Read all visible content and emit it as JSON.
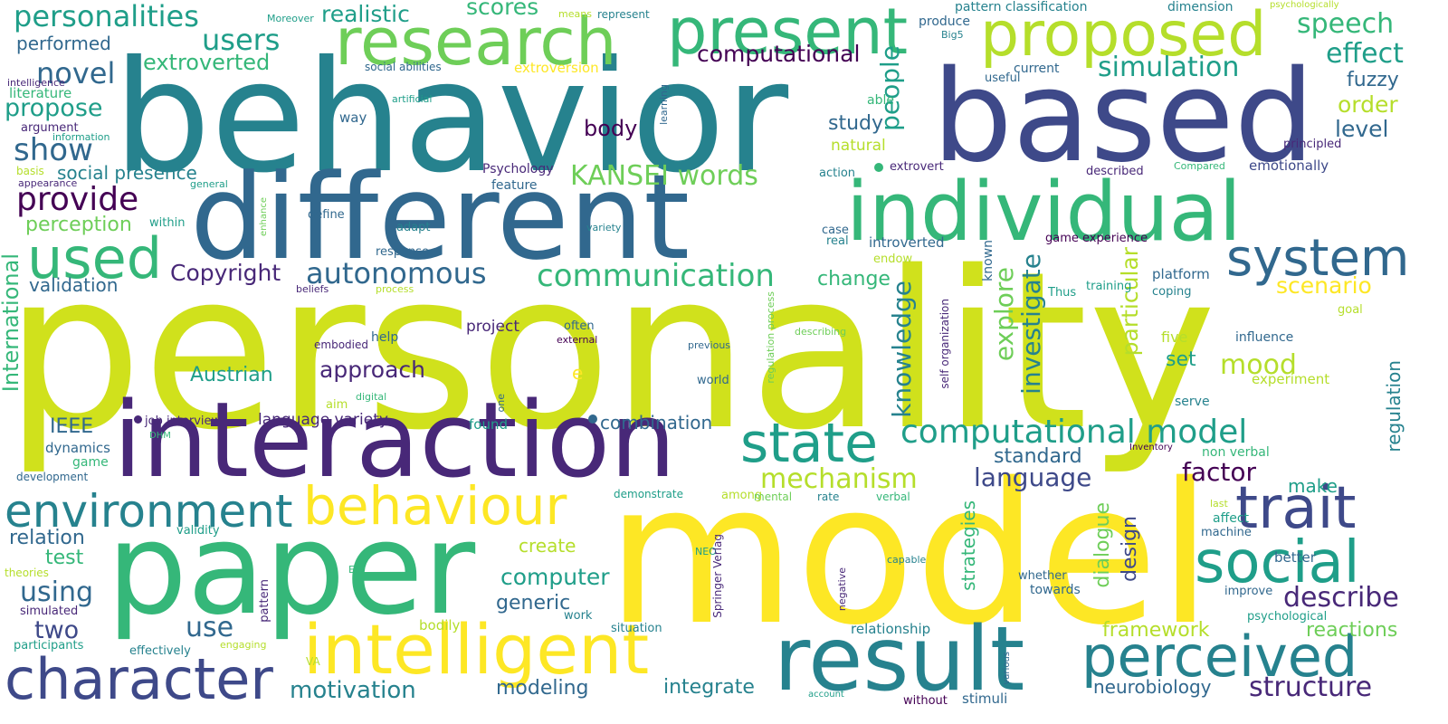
{
  "colors": {
    "background": "#ffffff",
    "palette": {
      "p1": "#440154",
      "p2": "#482878",
      "p3": "#3e4989",
      "p4": "#31688e",
      "p5": "#26828e",
      "p6": "#1f9e89",
      "p7": "#35b779",
      "p8": "#6ece58",
      "p9": "#b5de2b",
      "p10": "#fde725",
      "p11": "#d0e11c"
    }
  },
  "words": {
    "personality": "personality",
    "behavior": "behavior",
    "model": "model",
    "based": "based",
    "different": "different",
    "interaction": "interaction",
    "paper": "paper",
    "individual": "individual",
    "research": "research",
    "present": "present",
    "proposed": "proposed",
    "result": "result",
    "intelligent": "intelligent",
    "character": "character",
    "used": "used",
    "environment": "environment",
    "behaviour": "behaviour",
    "state": "state",
    "social": "social",
    "trait": "trait",
    "system": "system",
    "perceived": "perceived",
    "communication": "communication",
    "computational_model": "computational model",
    "structure": "structure",
    "personalities": "personalities",
    "realistic": "realistic",
    "scores": "scores",
    "users": "users",
    "extroverted": "extroverted",
    "novel": "novel",
    "performed": "performed",
    "literature": "literature",
    "propose": "propose",
    "show": "show",
    "social_presence": "social presence",
    "provide": "provide",
    "perception": "perception",
    "copyright": "Copyright",
    "autonomous": "autonomous",
    "validation": "validation",
    "austrian": "Austrian",
    "international": "International",
    "ieee": "IEEE",
    "dynamics": "dynamics",
    "game": "game",
    "development": "development",
    "relation": "relation",
    "test": "test",
    "using": "using",
    "two": "two",
    "theories": "theories",
    "simulated": "simulated",
    "participants": "participants",
    "effectively": "effectively",
    "engaging": "engaging",
    "va": "VA",
    "motivation": "motivation",
    "modeling": "modeling",
    "integrate": "integrate",
    "use": "use",
    "computer": "computer",
    "generic": "generic",
    "bodily": "bodily",
    "situation": "situation",
    "work": "work",
    "create": "create",
    "kansei_words": "KANSEI words",
    "computational": "computational",
    "body": "body",
    "study": "study",
    "natural": "natural",
    "people": "people",
    "explore": "explore",
    "knowledge": "knowledge",
    "investigate": "investigate",
    "particular": "particular",
    "scenario": "scenario",
    "mood": "mood",
    "order": "order",
    "level": "level",
    "fuzzy": "fuzzy",
    "effect": "effect",
    "speech": "speech",
    "simulation": "simulation",
    "extroversion": "extroversion",
    "approach": "approach",
    "combination": "combination",
    "mechanism": "mechanism",
    "language": "language",
    "language_variety": "language variety",
    "job_interview": "job interview",
    "standard": "standard",
    "factor": "factor",
    "design": "design",
    "dialogue": "dialogue",
    "strategies": "strategies",
    "make": "make",
    "describe": "describe",
    "framework": "framework",
    "reactions": "reactions",
    "neurobiology": "neurobiology",
    "relationship": "relationship",
    "stimuli": "stimuli",
    "without": "without",
    "account": "account",
    "various": "various",
    "improve": "improve",
    "psychological": "psychological",
    "affect": "affect",
    "machine": "machine",
    "better": "better",
    "last": "last",
    "serve": "serve",
    "experiment": "experiment",
    "regulation": "regulation",
    "influence": "influence",
    "five": "five",
    "set": "set",
    "goal": "goal",
    "coping": "coping",
    "platform": "platform",
    "training": "training",
    "thus": "Thus",
    "game_experience": "game experience",
    "known": "known",
    "introverted": "introverted",
    "endow": "endow",
    "self_organization": "self organization",
    "change": "change",
    "real": "real",
    "case": "case",
    "action": "action",
    "extrovert": "extrovert",
    "described": "described",
    "compared": "Compared",
    "emotionally": "emotionally",
    "principled": "principled",
    "psychology": "Psychology",
    "feature": "feature",
    "define": "define",
    "adapt": "adapt",
    "response": "response",
    "variety": "variety",
    "within": "within",
    "general": "general",
    "enhance": "enhance",
    "appearance": "appearance",
    "basis": "basis",
    "information": "information",
    "argument": "argument",
    "intelligence": "intelligence",
    "artificial": "artificial",
    "learning": "learning",
    "way": "way",
    "able": "able",
    "means": "means",
    "moreover": "Moreover",
    "social_abilities": "social abilities",
    "big5": "Big5",
    "produce": "produce",
    "represent": "represent",
    "pattern_classification": "pattern classification",
    "dimension": "dimension",
    "psychologically": "psychologically",
    "useful": "useful",
    "current": "current",
    "beliefs": "beliefs",
    "process": "process",
    "embodied": "embodied",
    "help": "help",
    "aim": "aim",
    "digital": "digital",
    "e": "e",
    "project": "project",
    "often": "often",
    "external": "external",
    "one": "one",
    "previous": "previous",
    "world": "world",
    "regulation_process": "regulation process",
    "describing": "describing",
    "found": "found",
    "demonstrate": "demonstrate",
    "among": "among",
    "mental": "mental",
    "rate": "rate",
    "verbal": "verbal",
    "non_verbal": "non verbal",
    "inventory": "Inventory",
    "dhm": "DHM",
    "validity": "validity",
    "ei": "EI",
    "pattern": "pattern",
    "neo": "NEO",
    "negative": "negative",
    "springer_verlag": "Springer Verlag",
    "capable": "capable",
    "whether": "whether",
    "towards": "towards"
  }
}
